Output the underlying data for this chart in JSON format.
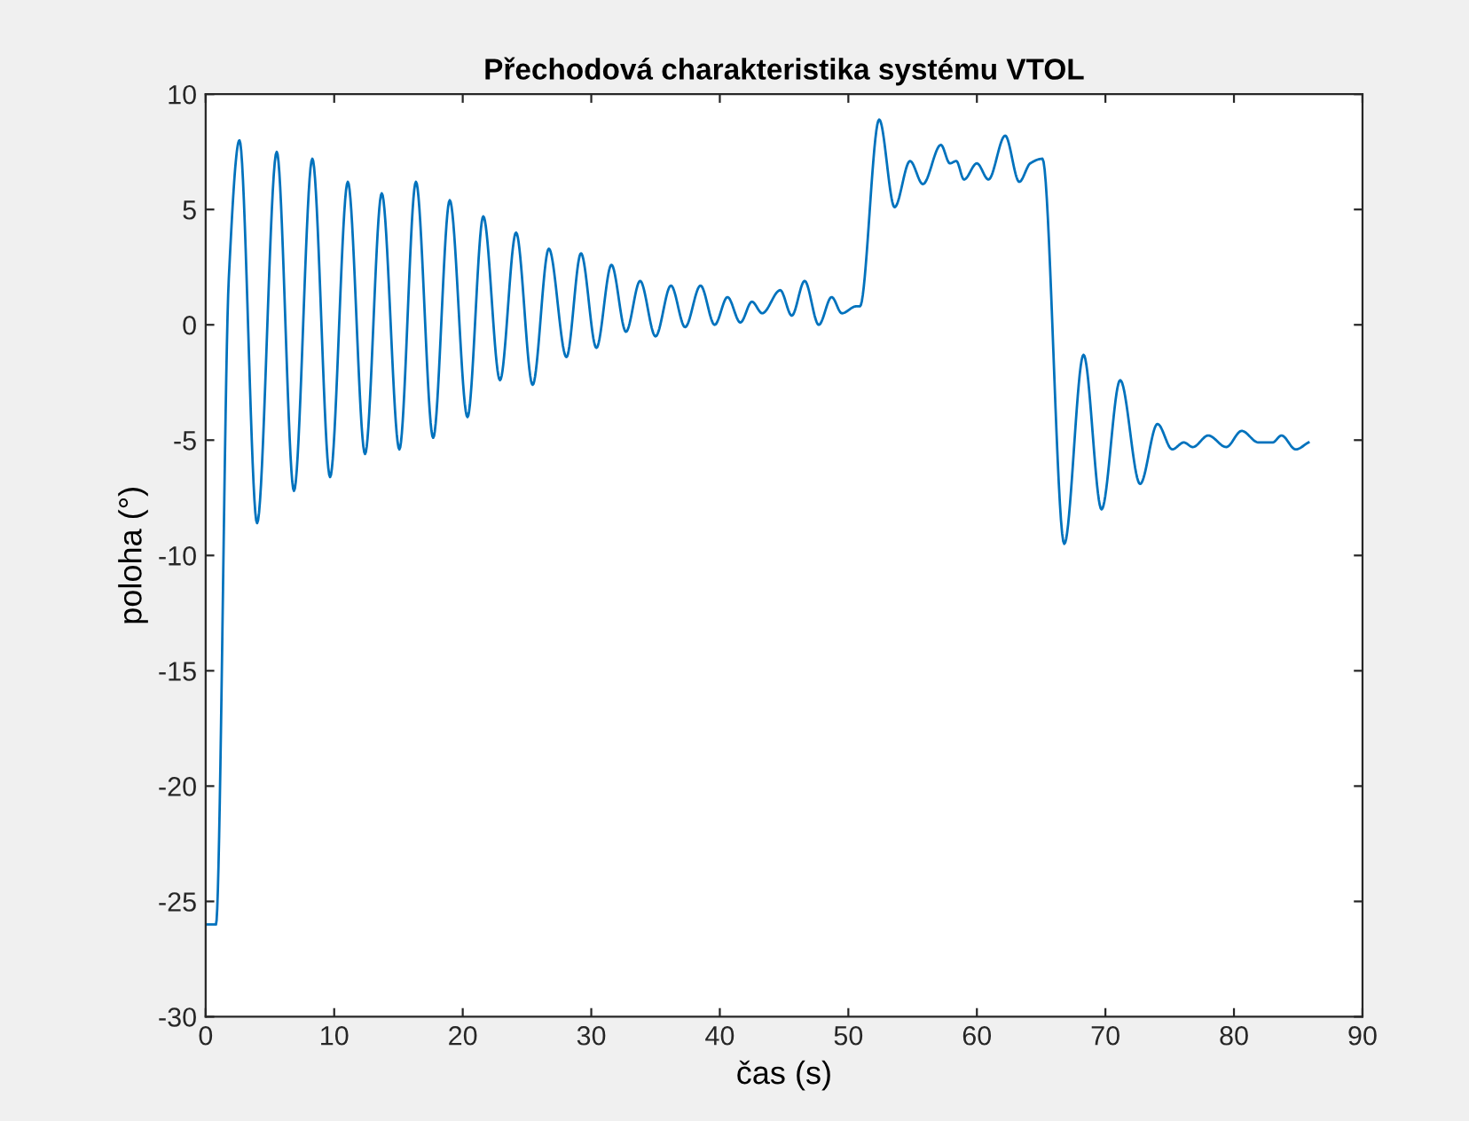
{
  "chart_data": {
    "type": "line",
    "title": "Přechodová charakteristika systému VTOL",
    "xlabel": "čas (s)",
    "ylabel": "poloha (°)",
    "xlim": [
      0,
      90
    ],
    "ylim": [
      -30,
      10
    ],
    "xticks": [
      0,
      10,
      20,
      30,
      40,
      50,
      60,
      70,
      80,
      90
    ],
    "yticks": [
      -30,
      -25,
      -20,
      -15,
      -10,
      -5,
      0,
      5,
      10
    ],
    "grid": false,
    "legend": false,
    "marker": "none",
    "line_style": "solid",
    "series": [
      {
        "color": "#0072bd",
        "x": [
          0,
          0.8,
          1.8,
          2.63,
          4.0,
          5.53,
          6.87,
          8.3,
          9.68,
          11.06,
          12.4,
          13.7,
          15.07,
          16.36,
          17.7,
          18.99,
          20.37,
          21.6,
          22.9,
          24.15,
          25.44,
          26.7,
          28.07,
          29.2,
          30.4,
          31.57,
          32.7,
          33.8,
          35.0,
          36.2,
          37.3,
          38.5,
          39.6,
          40.6,
          41.6,
          42.5,
          43.3,
          44.7,
          45.6,
          46.6,
          47.7,
          48.7,
          49.5,
          50.6,
          50.9,
          52.4,
          53.6,
          54.8,
          55.8,
          57.2,
          57.9,
          58.4,
          59.0,
          60.0,
          60.9,
          62.2,
          63.3,
          64.15,
          65.1,
          66.8,
          68.3,
          69.7,
          71.15,
          72.7,
          74.05,
          75.2,
          76.1,
          76.8,
          78.0,
          79.4,
          80.6,
          81.9,
          83.0,
          83.7,
          84.8,
          85.8
        ],
        "values": [
          -26,
          -26,
          2,
          8.0,
          -8.6,
          7.5,
          -7.2,
          7.2,
          -6.6,
          6.2,
          -5.6,
          5.7,
          -5.4,
          6.2,
          -4.9,
          5.4,
          -4.0,
          4.7,
          -2.4,
          4.0,
          -2.6,
          3.3,
          -1.4,
          3.1,
          -1.0,
          2.6,
          -0.3,
          1.9,
          -0.5,
          1.7,
          -0.1,
          1.7,
          0.0,
          1.2,
          0.1,
          1.0,
          0.5,
          1.5,
          0.4,
          1.9,
          0.0,
          1.2,
          0.5,
          0.8,
          0.8,
          8.9,
          5.1,
          7.1,
          6.1,
          7.8,
          7.0,
          7.1,
          6.3,
          7.0,
          6.3,
          8.2,
          6.2,
          7.0,
          7.2,
          -9.5,
          -1.3,
          -8.0,
          -2.4,
          -6.9,
          -4.3,
          -5.4,
          -5.1,
          -5.3,
          -4.8,
          -5.3,
          -4.6,
          -5.1,
          -5.1,
          -4.8,
          -5.4,
          -5.1
        ]
      }
    ]
  }
}
